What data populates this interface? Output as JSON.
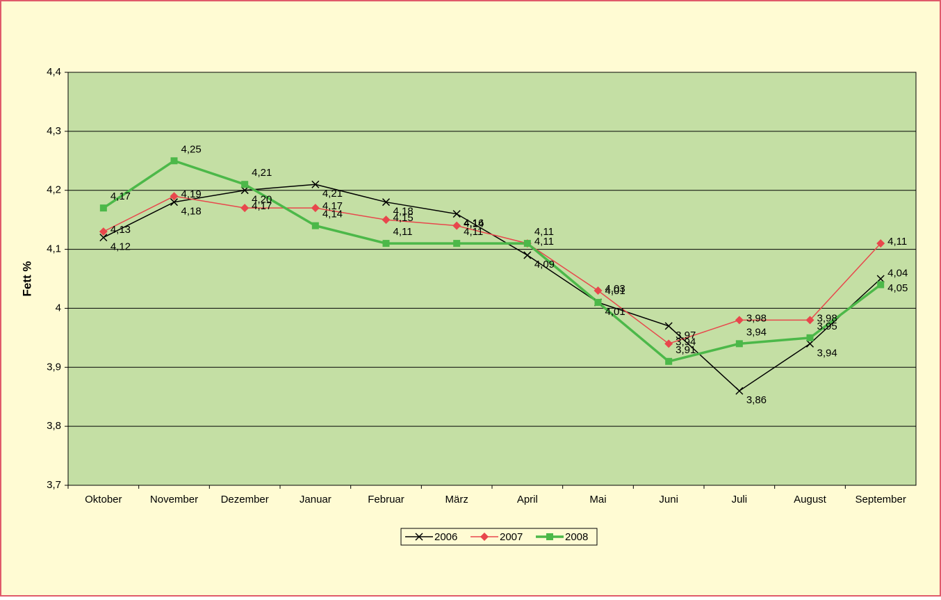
{
  "chart_data": {
    "type": "line",
    "y_label": "Fett %",
    "categories": [
      "Oktober",
      "November",
      "Dezember",
      "Januar",
      "Februar",
      "März",
      "April",
      "Mai",
      "Juni",
      "Juli",
      "August",
      "September"
    ],
    "series": [
      {
        "name": "2006",
        "color": "#000000",
        "marker": "x",
        "values": [
          4.12,
          4.18,
          4.2,
          4.21,
          4.18,
          4.16,
          4.09,
          4.01,
          3.97,
          3.86,
          3.94,
          4.05
        ],
        "value_labels": [
          "4,12",
          "4,18",
          "4,20",
          "4,21",
          "4,18",
          "4,16",
          "4,09",
          "4,01",
          "3,97",
          "3,86",
          "3,94",
          "4,05"
        ]
      },
      {
        "name": "2007",
        "color": "#e8474c",
        "marker": "diamond",
        "values": [
          4.13,
          4.19,
          4.17,
          4.17,
          4.15,
          4.14,
          4.11,
          4.03,
          3.94,
          3.98,
          3.98,
          4.11
        ],
        "value_labels": [
          "4,13",
          "4,19",
          "4,17",
          "4,17",
          "4,15",
          "4,14",
          "4,11",
          "4,03",
          "3,94",
          "3,98",
          "3,98",
          "4,11"
        ]
      },
      {
        "name": "2008",
        "color": "#4cb849",
        "marker": "square",
        "values": [
          4.17,
          4.25,
          4.21,
          4.14,
          4.11,
          4.11,
          4.11,
          4.01,
          3.91,
          3.94,
          3.95,
          4.04
        ],
        "value_labels": [
          "4,17",
          "4,25",
          "4,21",
          "4,14",
          "4,11",
          "4,11",
          "4,11",
          "4,01",
          "3,91",
          "3,94",
          "3,95",
          "4,04"
        ]
      }
    ],
    "ylim": [
      3.7,
      4.4
    ],
    "yticks": [
      {
        "value": 3.7,
        "label": "3,7"
      },
      {
        "value": 3.8,
        "label": "3,8"
      },
      {
        "value": 3.9,
        "label": "3,9"
      },
      4,
      {
        "value": 4.1,
        "label": "4,1"
      },
      {
        "value": 4.2,
        "label": "4,2"
      },
      {
        "value": 4.3,
        "label": "4,3"
      },
      {
        "value": 4.4,
        "label": "4,4"
      }
    ],
    "grid": true,
    "legend": "bottom"
  }
}
